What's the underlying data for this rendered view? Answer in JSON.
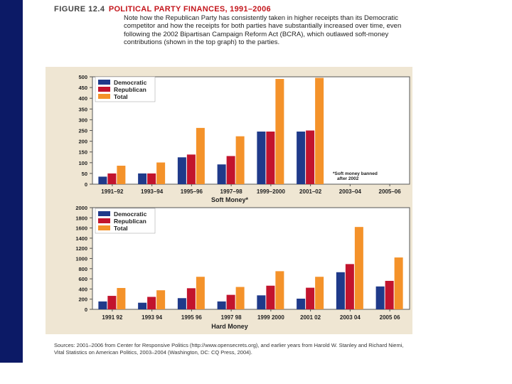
{
  "figure": {
    "number": "FIGURE 12.4",
    "title": "POLITICAL PARTY FINANCES, 1991–2006",
    "caption": "Note how the Republican Party has consistently taken in higher receipts than its Democratic competitor and how the receipts for both parties have substantially increased over time, even following the 2002 Bipartisan Campaign Reform Act (BCRA), which outlawed soft-money contributions (shown in the top graph) to the parties.",
    "source": "Sources: 2001–2006 from Center for Responsive Politics (http://www.opensecrets.org), and earlier years from Harold W. Stanley and Richard Niemi, Vital Statistics on American Politics, 2003–2004 (Washington, DC: CQ Press, 2004)."
  },
  "colors": {
    "democratic": "#1f3a8a",
    "republican": "#c2142d",
    "total": "#f4922a",
    "panel_bg": "#efe6d3",
    "sidebar": "#0c1a66"
  },
  "chart_data": [
    {
      "type": "bar",
      "title": "",
      "xlabel": "Soft Money*",
      "ylabel": "",
      "ylim": [
        0,
        500
      ],
      "yticks": [
        "0",
        "50",
        "100",
        "150",
        "200",
        "250",
        "300",
        "350",
        "400",
        "450",
        "500"
      ],
      "categories": [
        "1991–92",
        "1993–94",
        "1995–96",
        "1997–98",
        "1999–2000",
        "2001–02",
        "2003–04",
        "2005–06"
      ],
      "series": [
        {
          "name": "Democratic",
          "values": [
            35,
            50,
            125,
            92,
            245,
            245,
            0,
            0
          ]
        },
        {
          "name": "Republican",
          "values": [
            50,
            50,
            138,
            131,
            245,
            250,
            0,
            0
          ]
        },
        {
          "name": "Total",
          "values": [
            86,
            101,
            262,
            223,
            490,
            495,
            0,
            0
          ]
        }
      ],
      "legend": [
        "Democratic",
        "Republican",
        "Total"
      ],
      "legend_position": "top-left",
      "annotation": "*Soft money banned after 2002"
    },
    {
      "type": "bar",
      "title": "",
      "xlabel": "Hard Money",
      "ylabel": "",
      "ylim": [
        0,
        2000
      ],
      "yticks": [
        "0",
        "200",
        "400",
        "600",
        "800",
        "1000",
        "1200",
        "1400",
        "1600",
        "1800",
        "2000"
      ],
      "categories": [
        "1991 92",
        "1993 94",
        "1995 96",
        "1997 98",
        "1999 2000",
        "2001 02",
        "2003 04",
        "2005 06"
      ],
      "series": [
        {
          "name": "Democratic",
          "values": [
            155,
            130,
            220,
            155,
            275,
            210,
            730,
            450
          ]
        },
        {
          "name": "Republican",
          "values": [
            265,
            245,
            415,
            285,
            465,
            425,
            890,
            560
          ]
        },
        {
          "name": "Total",
          "values": [
            420,
            375,
            640,
            440,
            750,
            640,
            1620,
            1020
          ]
        }
      ],
      "legend": [
        "Democratic",
        "Republican",
        "Total"
      ],
      "legend_position": "top-left"
    }
  ]
}
